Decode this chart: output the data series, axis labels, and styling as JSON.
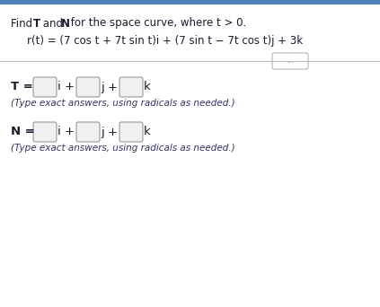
{
  "equation": "r(t) = (7 cos t + 7t sin t)i + (7 sin t − 7t cos t)j + 3k",
  "T_hint": "(Type exact answers, using radicals as needed.)",
  "N_hint": "(Type exact answers, using radicals as needed.)",
  "dots_button": "...",
  "bg_color": "#ffffff",
  "top_bar_color": "#4f81bd",
  "text_color": "#1a1a2e",
  "label_color": "#1a1a2e",
  "hint_color": "#333366",
  "box_edge_color": "#999999",
  "box_fill": "#f0f0f0",
  "dots_border_color": "#aaaaaa",
  "divider_color": "#bbbbbb",
  "title_fontsize": 8.5,
  "eq_fontsize": 8.5,
  "label_fontsize": 9.5,
  "hint_fontsize": 7.5
}
